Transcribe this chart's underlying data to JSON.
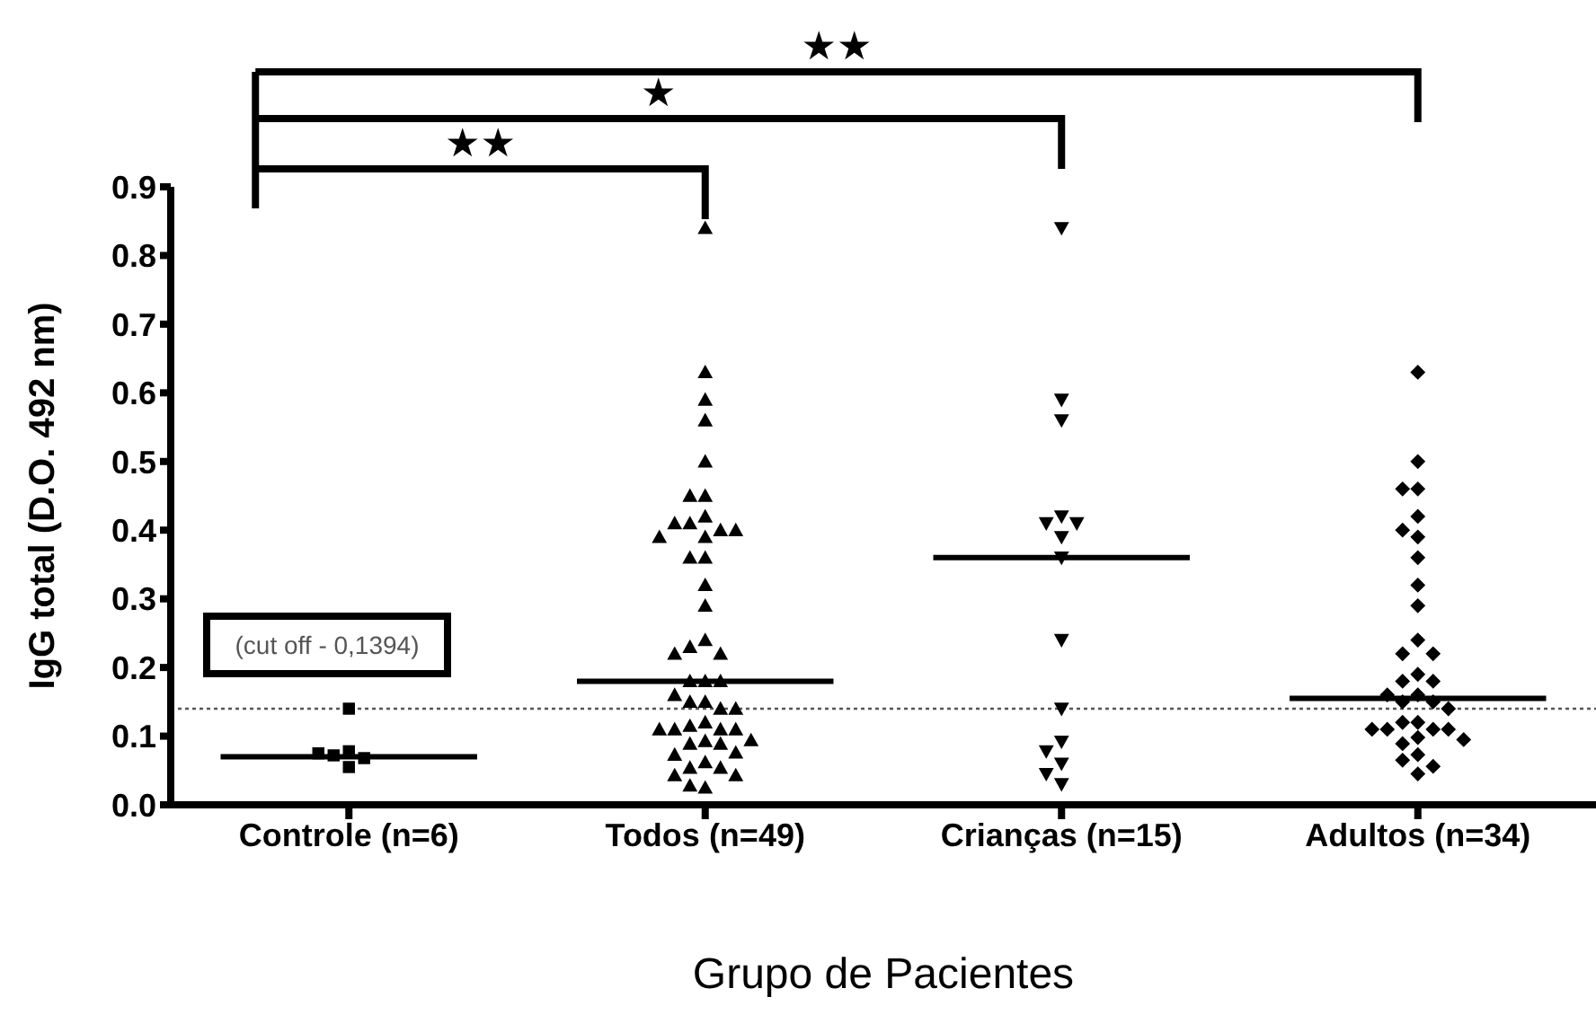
{
  "chart_data": {
    "type": "scatter",
    "xlabel": "Grupo de Pacientes",
    "ylabel": "IgG total (D.O. 492 nm)",
    "categories": [
      "Controle (n=6)",
      "Todos (n=49)",
      "Crianças (n=15)",
      "Adultos (n=34)"
    ],
    "ylim": [
      0,
      0.9
    ],
    "yticks": [
      {
        "value": 0,
        "label": "0.0"
      },
      {
        "value": 0.1,
        "label": "0.1"
      },
      {
        "value": 0.2,
        "label": "0.2"
      },
      {
        "value": 0.3,
        "label": "0.3"
      },
      {
        "value": 0.4,
        "label": "0.4"
      },
      {
        "value": 0.5,
        "label": "0.5"
      },
      {
        "value": 0.6,
        "label": "0.6"
      },
      {
        "value": 0.7,
        "label": "0.7"
      },
      {
        "value": 0.8,
        "label": "0.8"
      },
      {
        "value": 0.9,
        "label": "0.9"
      }
    ],
    "series": [
      {
        "marker": "square",
        "color": "#000000",
        "x": [
          "Controle (n=6)",
          "Controle (n=6)",
          "Controle (n=6)",
          "Controle (n=6)",
          "Controle (n=6)",
          "Controle (n=6)"
        ],
        "values": [
          0.14,
          0.078,
          0.072,
          0.055,
          0.068,
          0.075
        ]
      },
      {
        "marker": "triangle",
        "color": "#000000",
        "x": [
          "Todos (n=49)",
          "Todos (n=49)",
          "Todos (n=49)",
          "Todos (n=49)",
          "Todos (n=49)",
          "Todos (n=49)",
          "Todos (n=49)",
          "Todos (n=49)",
          "Todos (n=49)",
          "Todos (n=49)",
          "Todos (n=49)",
          "Todos (n=49)",
          "Todos (n=49)",
          "Todos (n=49)",
          "Todos (n=49)",
          "Todos (n=49)",
          "Todos (n=49)",
          "Todos (n=49)",
          "Todos (n=49)",
          "Todos (n=49)",
          "Todos (n=49)",
          "Todos (n=49)",
          "Todos (n=49)",
          "Todos (n=49)",
          "Todos (n=49)",
          "Todos (n=49)",
          "Todos (n=49)",
          "Todos (n=49)",
          "Todos (n=49)",
          "Todos (n=49)",
          "Todos (n=49)",
          "Todos (n=49)",
          "Todos (n=49)",
          "Todos (n=49)",
          "Todos (n=49)",
          "Todos (n=49)",
          "Todos (n=49)",
          "Todos (n=49)",
          "Todos (n=49)",
          "Todos (n=49)",
          "Todos (n=49)",
          "Todos (n=49)",
          "Todos (n=49)",
          "Todos (n=49)",
          "Todos (n=49)",
          "Todos (n=49)",
          "Todos (n=49)",
          "Todos (n=49)",
          "Todos (n=49)"
        ],
        "values": [
          0.84,
          0.63,
          0.59,
          0.56,
          0.5,
          0.45,
          0.45,
          0.42,
          0.41,
          0.4,
          0.41,
          0.4,
          0.39,
          0.39,
          0.36,
          0.36,
          0.32,
          0.29,
          0.24,
          0.23,
          0.22,
          0.22,
          0.18,
          0.18,
          0.18,
          0.16,
          0.15,
          0.15,
          0.14,
          0.14,
          0.12,
          0.115,
          0.11,
          0.11,
          0.11,
          0.11,
          0.093,
          0.089,
          0.089,
          0.094,
          0.073,
          0.076,
          0.062,
          0.054,
          0.054,
          0.043,
          0.043,
          0.025,
          0.028
        ]
      },
      {
        "marker": "triangle-down",
        "color": "#000000",
        "x": [
          "Crianças (n=15)",
          "Crianças (n=15)",
          "Crianças (n=15)",
          "Crianças (n=15)",
          "Crianças (n=15)",
          "Crianças (n=15)",
          "Crianças (n=15)",
          "Crianças (n=15)",
          "Crianças (n=15)",
          "Crianças (n=15)",
          "Crianças (n=15)",
          "Crianças (n=15)",
          "Crianças (n=15)",
          "Crianças (n=15)",
          "Crianças (n=15)"
        ],
        "values": [
          0.84,
          0.59,
          0.56,
          0.42,
          0.41,
          0.41,
          0.39,
          0.36,
          0.24,
          0.14,
          0.092,
          0.078,
          0.06,
          0.045,
          0.03
        ]
      },
      {
        "marker": "diamond",
        "color": "#000000",
        "x": [
          "Adultos (n=34)",
          "Adultos (n=34)",
          "Adultos (n=34)",
          "Adultos (n=34)",
          "Adultos (n=34)",
          "Adultos (n=34)",
          "Adultos (n=34)",
          "Adultos (n=34)",
          "Adultos (n=34)",
          "Adultos (n=34)",
          "Adultos (n=34)",
          "Adultos (n=34)",
          "Adultos (n=34)",
          "Adultos (n=34)",
          "Adultos (n=34)",
          "Adultos (n=34)",
          "Adultos (n=34)",
          "Adultos (n=34)",
          "Adultos (n=34)",
          "Adultos (n=34)",
          "Adultos (n=34)",
          "Adultos (n=34)",
          "Adultos (n=34)",
          "Adultos (n=34)",
          "Adultos (n=34)",
          "Adultos (n=34)",
          "Adultos (n=34)",
          "Adultos (n=34)",
          "Adultos (n=34)",
          "Adultos (n=34)",
          "Adultos (n=34)",
          "Adultos (n=34)",
          "Adultos (n=34)",
          "Adultos (n=34)"
        ],
        "values": [
          0.63,
          0.5,
          0.46,
          0.46,
          0.42,
          0.4,
          0.39,
          0.36,
          0.32,
          0.29,
          0.24,
          0.22,
          0.22,
          0.19,
          0.18,
          0.18,
          0.16,
          0.16,
          0.15,
          0.15,
          0.14,
          0.12,
          0.12,
          0.11,
          0.11,
          0.11,
          0.11,
          0.098,
          0.089,
          0.095,
          0.073,
          0.065,
          0.056,
          0.045
        ]
      },
      {
        "type": "box",
        "color": "#000000",
        "boxes": [
          {
            "low": 0.07,
            "q1": 0.07,
            "median": 0.07,
            "q3": 0.07,
            "high": 0.07
          },
          {
            "low": 0.18,
            "q1": 0.18,
            "median": 0.18,
            "q3": 0.18,
            "high": 0.18
          },
          {
            "low": 0.36,
            "q1": 0.36,
            "median": 0.36,
            "q3": 0.36,
            "high": 0.36
          },
          {
            "low": 0.155,
            "q1": 0.155,
            "median": 0.155,
            "q3": 0.155,
            "high": 0.155
          }
        ]
      }
    ],
    "ref_lines": [
      {
        "axis": "y",
        "value": 0.14,
        "label": "(cut off - 0,1394)",
        "line_style": "dotted",
        "color": "#555555"
      }
    ],
    "annotations": [
      "★★",
      "★",
      "★★"
    ]
  }
}
